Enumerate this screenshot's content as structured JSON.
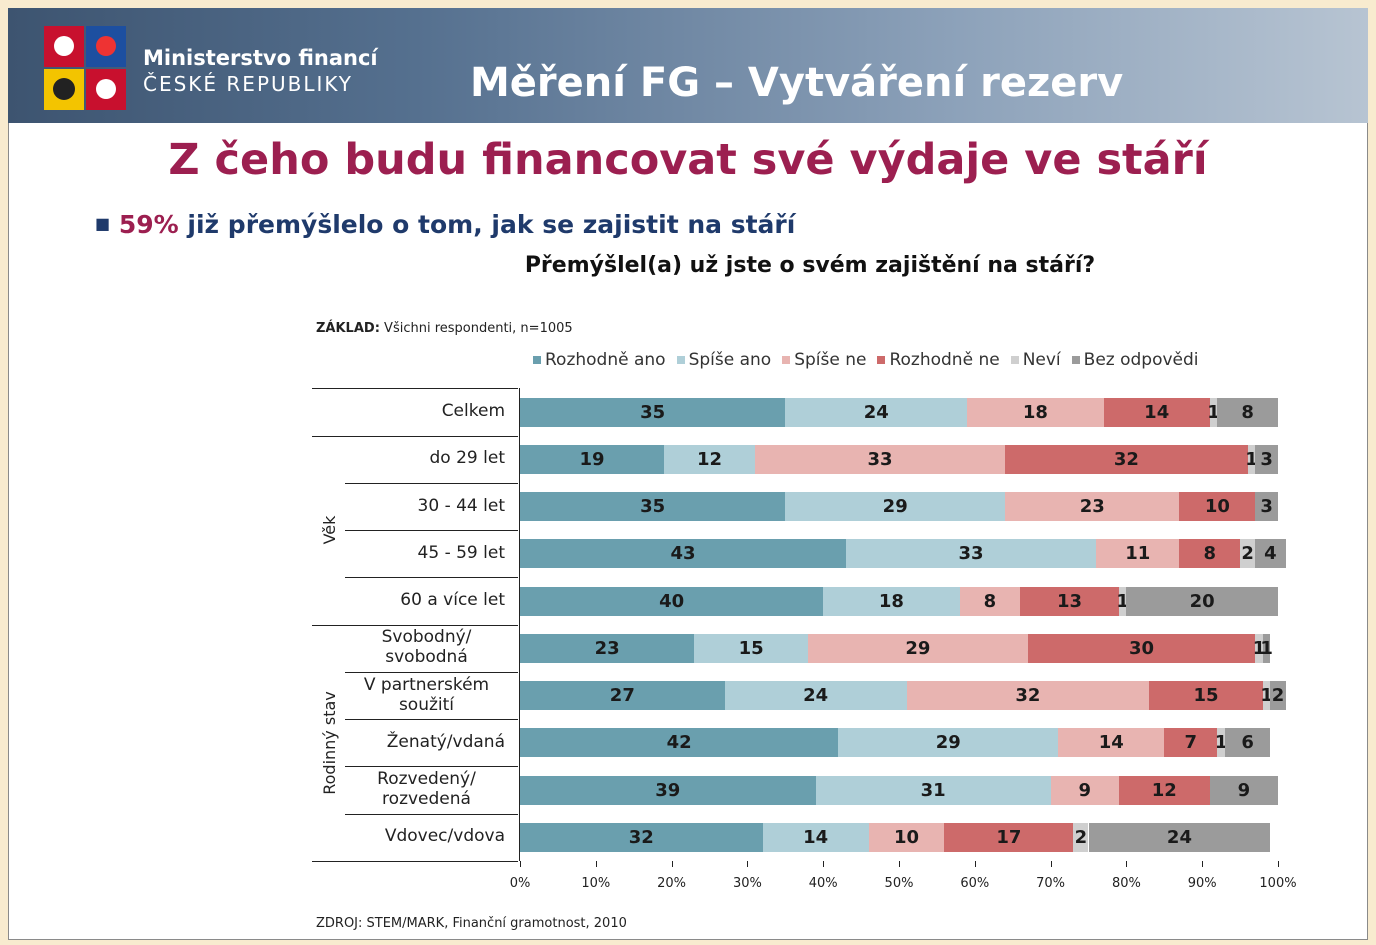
{
  "header": {
    "ministry": "Ministerstvo financí",
    "country": "ČESKÉ REPUBLIKY",
    "title": "Měření FG – Vytváření rezerv"
  },
  "slide_title": "Z čeho budu financovat své výdaje ve stáří",
  "bullet": {
    "highlight": "59%",
    "text": "již přemýšlelo o tom, jak se zajistit na stáří"
  },
  "question": "Přemýšlel(a) už jste o svém zajištění na stáří?",
  "base": {
    "label": "ZÁKLAD:",
    "text": "Všichni respondenti, n=1005"
  },
  "source": "ZDROJ: STEM/MARK, Finanční gramotnost, 2010",
  "chart_data": {
    "type": "stacked-barh",
    "categories": [
      "Celkem",
      "do 29 let",
      "30 - 44 let",
      "45 - 59 let",
      "60 a více let",
      "Svobodný/\nsvobodná",
      "V partnerském\nsoužití",
      "Ženatý/vdaná",
      "Rozvedený/\nrozvedená",
      "Vdovec/vdova"
    ],
    "groups": [
      "Věk",
      "Rodinný stav"
    ],
    "series": [
      {
        "name": "Rozhodně ano",
        "color": "#6a9fae",
        "values": [
          35,
          19,
          35,
          43,
          40,
          23,
          27,
          42,
          39,
          32
        ]
      },
      {
        "name": "Spíše ano",
        "color": "#afcfd8",
        "values": [
          24,
          12,
          29,
          33,
          18,
          15,
          24,
          29,
          31,
          14
        ]
      },
      {
        "name": "Spíše ne",
        "color": "#e8b4b1",
        "values": [
          18,
          33,
          23,
          11,
          8,
          29,
          32,
          14,
          9,
          10
        ]
      },
      {
        "name": "Rozhodně ne",
        "color": "#cd6a6a",
        "values": [
          14,
          32,
          10,
          8,
          13,
          30,
          15,
          7,
          12,
          17
        ]
      },
      {
        "name": "Neví",
        "color": "#cfcfcf",
        "values": [
          1,
          1,
          null,
          2,
          1,
          1,
          1,
          1,
          null,
          2
        ]
      },
      {
        "name": "Bez odpovědi",
        "color": "#9b9b9b",
        "values": [
          8,
          3,
          3,
          4,
          20,
          1,
          2,
          6,
          9,
          24
        ]
      }
    ],
    "xlim": [
      0,
      100
    ],
    "xticks": [
      {
        "value": 0,
        "label": "0%"
      },
      {
        "value": 10,
        "label": "10%"
      },
      {
        "value": 20,
        "label": "20%"
      },
      {
        "value": 30,
        "label": "30%"
      },
      {
        "value": 40,
        "label": "40%"
      },
      {
        "value": 50,
        "label": "50%"
      },
      {
        "value": 60,
        "label": "60%"
      },
      {
        "value": 70,
        "label": "70%"
      },
      {
        "value": 80,
        "label": "80%"
      },
      {
        "value": 90,
        "label": "90%"
      },
      {
        "value": 100,
        "label": "100%"
      }
    ],
    "legend": "top"
  }
}
